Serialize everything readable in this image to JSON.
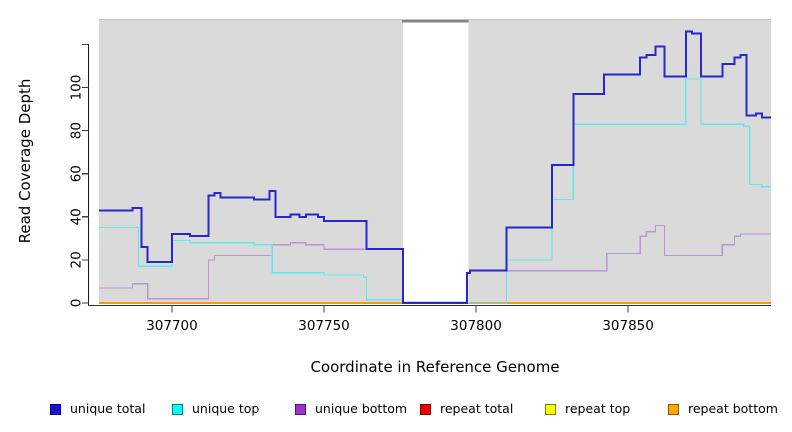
{
  "labels": {
    "ylabel": "Read Coverage Depth",
    "xlabel": "Coordinate in Reference Genome"
  },
  "chart_data": {
    "type": "line",
    "step": true,
    "title": "",
    "xlabel": "Coordinate in Reference Genome",
    "ylabel": "Read Coverage Depth",
    "xlim": [
      307676,
      307897
    ],
    "ylim": [
      0,
      131.8
    ],
    "x_ticks": [
      307700,
      307750,
      307800,
      307850
    ],
    "x_tick_labels": [
      "307700",
      "307750",
      "307800",
      "307850"
    ],
    "y_ticks": [
      0,
      20,
      40,
      60,
      80,
      100,
      120
    ],
    "y_tick_labels": [
      "0",
      "20",
      "40",
      "60",
      "80",
      "100",
      ""
    ],
    "grid": false,
    "plot_bg": "#dadada",
    "gap_band": {
      "start": 307776,
      "end": 307797.5,
      "color": "#ffffff",
      "top_line_color": "#848484"
    },
    "series": [
      {
        "name": "repeat total",
        "color": "#dd0000",
        "width": 1.2,
        "segments": [
          [
            [
              307676,
              0
            ],
            [
              307897,
              0
            ]
          ]
        ]
      },
      {
        "name": "repeat top",
        "color": "#ffff00",
        "width": 1.2,
        "segments": [
          [
            [
              307676,
              0
            ],
            [
              307897,
              0
            ]
          ]
        ]
      },
      {
        "name": "repeat bottom",
        "color": "#ff9800",
        "width": 2,
        "segments": [
          [
            [
              307676,
              0
            ],
            [
              307776,
              0
            ]
          ],
          [
            [
              307797.5,
              0
            ],
            [
              307897,
              0
            ]
          ]
        ]
      },
      {
        "name": "unique bottom",
        "color": "#bd93d7",
        "width": 1.3,
        "segments": [
          [
            [
              307676,
              7
            ],
            [
              307687,
              9
            ],
            [
              307692,
              2
            ],
            [
              307712,
              20
            ],
            [
              307714,
              22
            ],
            [
              307733,
              27
            ],
            [
              307739,
              28
            ],
            [
              307744,
              27
            ],
            [
              307750,
              25
            ],
            [
              307776,
              0.5
            ],
            [
              307797,
              14
            ],
            [
              307798,
              15
            ],
            [
              307843,
              23
            ],
            [
              307854,
              31
            ],
            [
              307856,
              33
            ],
            [
              307859,
              36
            ],
            [
              307862,
              22
            ],
            [
              307881,
              27
            ],
            [
              307885,
              31
            ],
            [
              307887,
              32
            ],
            [
              307897,
              32
            ]
          ]
        ]
      },
      {
        "name": "unique top",
        "color": "#5fe9ed",
        "width": 1.3,
        "segments": [
          [
            [
              307676,
              35
            ],
            [
              307689,
              17
            ],
            [
              307700,
              29
            ],
            [
              307706,
              28
            ],
            [
              307727,
              27
            ],
            [
              307733,
              14
            ],
            [
              307750,
              13
            ],
            [
              307763,
              12
            ],
            [
              307764,
              1.5
            ],
            [
              307776,
              0
            ],
            [
              307810,
              20
            ],
            [
              307825,
              48
            ],
            [
              307832,
              83
            ],
            [
              307869,
              104
            ],
            [
              307874,
              83
            ],
            [
              307888,
              82
            ],
            [
              307890,
              55
            ],
            [
              307894,
              54
            ],
            [
              307897,
              54
            ]
          ]
        ]
      },
      {
        "name": "unique total",
        "color": "#2727ce",
        "width": 2,
        "segments": [
          [
            [
              307676,
              43
            ],
            [
              307687,
              44
            ],
            [
              307690,
              26
            ],
            [
              307692,
              19
            ],
            [
              307700,
              32
            ],
            [
              307706,
              31
            ],
            [
              307712,
              50
            ],
            [
              307714,
              51
            ],
            [
              307716,
              49
            ],
            [
              307727,
              48
            ],
            [
              307732,
              52
            ],
            [
              307734,
              40
            ],
            [
              307739,
              41
            ],
            [
              307742,
              40
            ],
            [
              307744,
              41
            ],
            [
              307748,
              40
            ],
            [
              307750,
              38
            ],
            [
              307764,
              25
            ],
            [
              307776,
              0
            ],
            [
              307797,
              14
            ],
            [
              307798,
              15
            ],
            [
              307810,
              35
            ],
            [
              307825,
              64
            ],
            [
              307832,
              97
            ],
            [
              307842,
              106
            ],
            [
              307854,
              114
            ],
            [
              307856,
              115
            ],
            [
              307859,
              119
            ],
            [
              307862,
              105
            ],
            [
              307869,
              126
            ],
            [
              307871,
              125
            ],
            [
              307874,
              105
            ],
            [
              307881,
              111
            ],
            [
              307885,
              114
            ],
            [
              307887,
              115
            ],
            [
              307889,
              87
            ],
            [
              307892,
              88
            ],
            [
              307894,
              86
            ],
            [
              307897,
              86
            ]
          ]
        ]
      }
    ],
    "legend_position": "bottom"
  },
  "legend": [
    {
      "label": "unique total",
      "fill": "#1414cc",
      "border": "#000080"
    },
    {
      "label": "unique top",
      "fill": "#00ffff",
      "border": "#007d86"
    },
    {
      "label": "unique bottom",
      "fill": "#9933cc",
      "border": "#4d1a66"
    },
    {
      "label": "repeat total",
      "fill": "#ee0000",
      "border": "#7a0000"
    },
    {
      "label": "repeat top",
      "fill": "#ffff00",
      "border": "#7d7d00"
    },
    {
      "label": "repeat bottom",
      "fill": "#ffa500",
      "border": "#8a5a00"
    }
  ]
}
